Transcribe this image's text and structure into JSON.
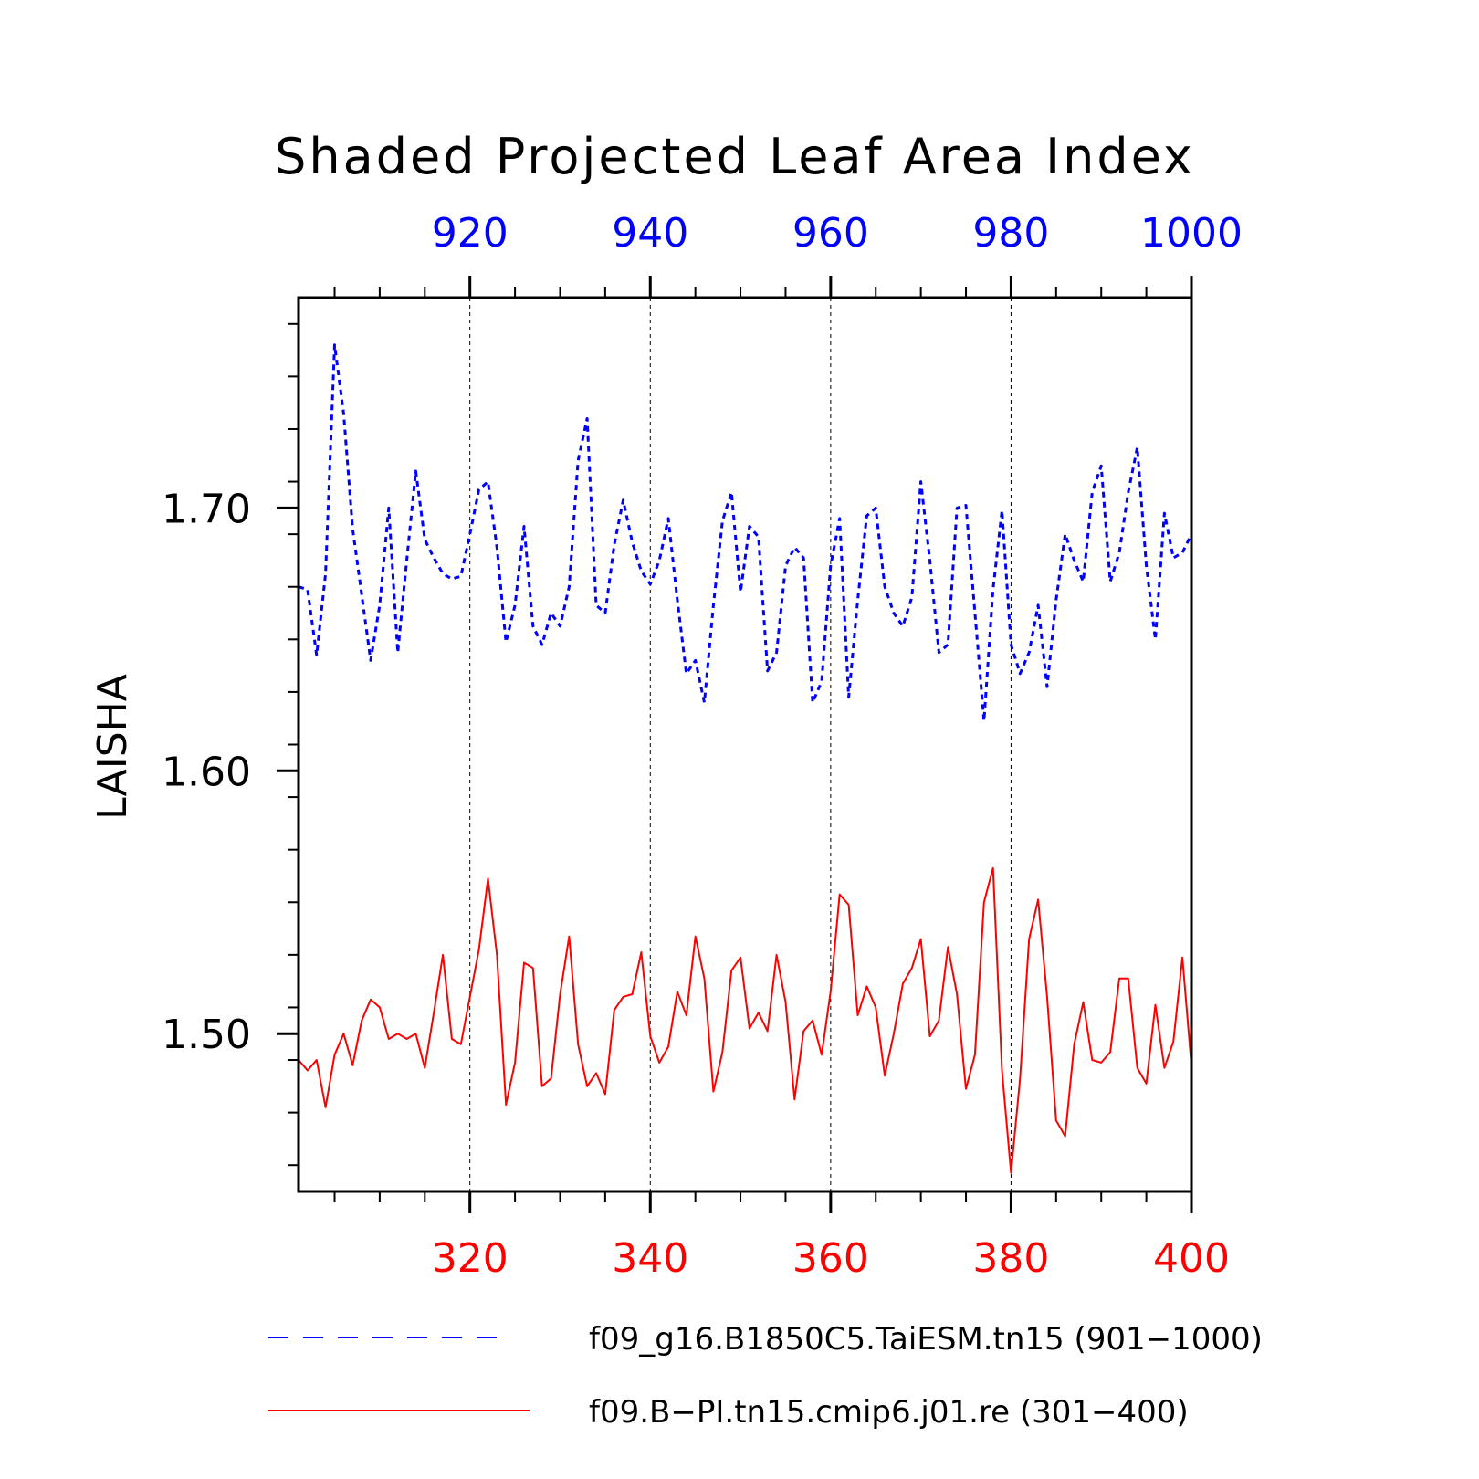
{
  "chart_data": {
    "type": "line",
    "title": "Shaded Projected Leaf Area Index",
    "ylabel": "LAISHA",
    "ylim": [
      1.44,
      1.78
    ],
    "y_ticks": [
      "1.50",
      "1.60",
      "1.70"
    ],
    "x_bottom": {
      "range": [
        301,
        400
      ],
      "tick_labels": [
        "320",
        "340",
        "360",
        "380",
        "400"
      ],
      "color": "#ff0000"
    },
    "x_top": {
      "range": [
        901,
        1000
      ],
      "tick_labels": [
        "920",
        "940",
        "960",
        "980",
        "1000"
      ],
      "color": "#0000ff"
    },
    "grid": "vertical dashed at major ticks",
    "legend_position": "bottom",
    "series": [
      {
        "name": "f09_g16.B1850C5.TaiESM.tn15 (901−1000)",
        "axis": "top",
        "color": "#0000ff",
        "style": "dashed",
        "x_start": 901,
        "values": [
          1.67,
          1.669,
          1.644,
          1.675,
          1.762,
          1.736,
          1.692,
          1.667,
          1.642,
          1.663,
          1.7,
          1.645,
          1.68,
          1.714,
          1.688,
          1.681,
          1.675,
          1.673,
          1.674,
          1.69,
          1.707,
          1.71,
          1.685,
          1.649,
          1.663,
          1.693,
          1.655,
          1.648,
          1.66,
          1.655,
          1.67,
          1.718,
          1.734,
          1.663,
          1.66,
          1.686,
          1.703,
          1.687,
          1.676,
          1.671,
          1.68,
          1.696,
          1.665,
          1.637,
          1.642,
          1.626,
          1.663,
          1.695,
          1.706,
          1.668,
          1.693,
          1.689,
          1.638,
          1.645,
          1.678,
          1.685,
          1.681,
          1.626,
          1.634,
          1.678,
          1.696,
          1.628,
          1.665,
          1.697,
          1.7,
          1.67,
          1.66,
          1.655,
          1.666,
          1.71,
          1.68,
          1.645,
          1.648,
          1.7,
          1.701,
          1.66,
          1.619,
          1.669,
          1.699,
          1.648,
          1.637,
          1.645,
          1.663,
          1.632,
          1.665,
          1.69,
          1.68,
          1.672,
          1.706,
          1.716,
          1.672,
          1.683,
          1.706,
          1.723,
          1.678,
          1.65,
          1.698,
          1.681,
          1.683,
          1.69
        ]
      },
      {
        "name": "f09.B−PI.tn15.cmip6.j01.re (301−400)",
        "axis": "bottom",
        "color": "#ff0000",
        "style": "solid",
        "x_start": 301,
        "values": [
          1.49,
          1.486,
          1.49,
          1.472,
          1.492,
          1.5,
          1.488,
          1.505,
          1.513,
          1.51,
          1.498,
          1.5,
          1.498,
          1.5,
          1.487,
          1.508,
          1.53,
          1.498,
          1.496,
          1.514,
          1.532,
          1.559,
          1.53,
          1.473,
          1.489,
          1.527,
          1.525,
          1.48,
          1.483,
          1.515,
          1.537,
          1.496,
          1.48,
          1.485,
          1.477,
          1.509,
          1.514,
          1.515,
          1.531,
          1.499,
          1.489,
          1.495,
          1.516,
          1.507,
          1.537,
          1.521,
          1.478,
          1.493,
          1.524,
          1.529,
          1.502,
          1.508,
          1.501,
          1.53,
          1.512,
          1.475,
          1.501,
          1.505,
          1.492,
          1.516,
          1.553,
          1.549,
          1.507,
          1.518,
          1.51,
          1.484,
          1.5,
          1.519,
          1.525,
          1.536,
          1.499,
          1.505,
          1.533,
          1.515,
          1.479,
          1.492,
          1.55,
          1.563,
          1.486,
          1.447,
          1.483,
          1.536,
          1.551,
          1.514,
          1.467,
          1.461,
          1.496,
          1.512,
          1.49,
          1.489,
          1.493,
          1.521,
          1.521,
          1.487,
          1.481,
          1.511,
          1.487,
          1.497,
          1.529,
          1.488
        ]
      }
    ]
  }
}
